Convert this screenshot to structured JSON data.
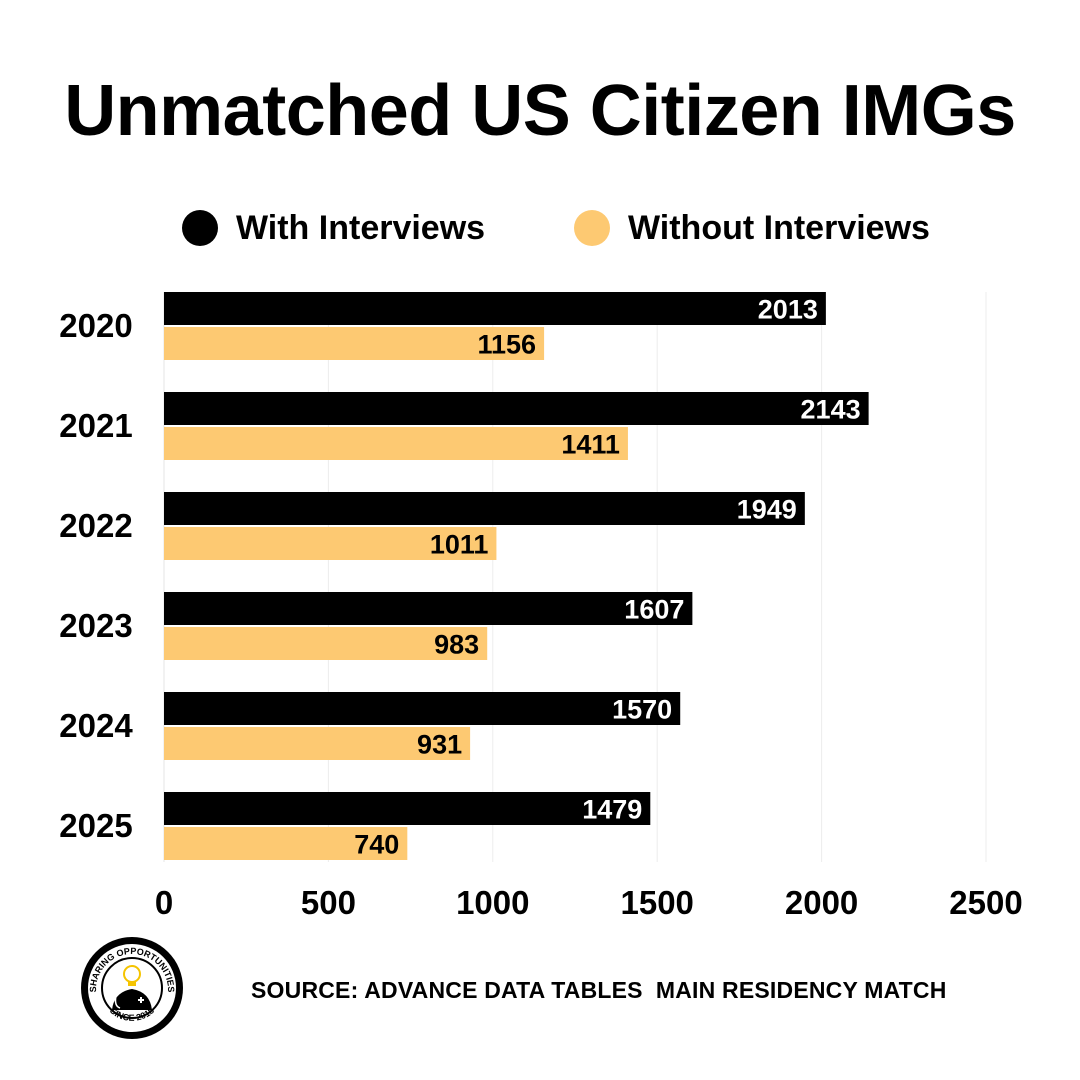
{
  "title": "Unmatched US Citizen IMGs",
  "legend": [
    {
      "label": "With Interviews",
      "color": "#000000"
    },
    {
      "label": "Without Interviews",
      "color": "#FDC972"
    }
  ],
  "source": "SOURCE: ADVANCE DATA TABLES  MAIN RESIDENCY MATCH",
  "logo": {
    "top_text": "SHARING OPPORTUNITIES",
    "bottom_text": "SINCE 2018",
    "center_text": "UnmatchedMD",
    "icon": "lightbulb-doctor-icon"
  },
  "chart_data": {
    "type": "bar",
    "orientation": "horizontal",
    "title": "Unmatched US Citizen IMGs",
    "xlabel": "",
    "ylabel": "",
    "categories": [
      "2020",
      "2021",
      "2022",
      "2023",
      "2024",
      "2025"
    ],
    "series": [
      {
        "name": "With Interviews",
        "color": "#000000",
        "label_color": "#FFFFFF",
        "values": [
          2013,
          2143,
          1949,
          1607,
          1570,
          1479
        ]
      },
      {
        "name": "Without Interviews",
        "color": "#FDC972",
        "label_color": "#000000",
        "values": [
          1156,
          1411,
          1011,
          983,
          931,
          740
        ]
      }
    ],
    "xlim": [
      0,
      2500
    ],
    "xticks": [
      0,
      500,
      1000,
      1500,
      2000,
      2500
    ],
    "grid": true,
    "legend_position": "top",
    "data_labels": "inside-end"
  }
}
